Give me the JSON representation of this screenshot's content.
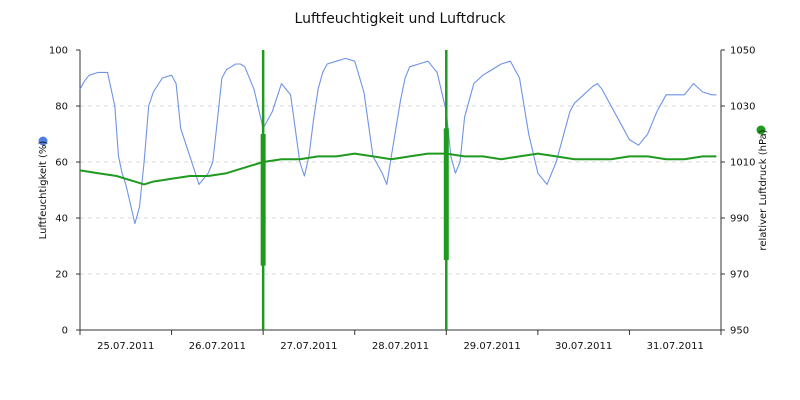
{
  "chart_data": {
    "type": "line",
    "title": "Luftfeuchtigkeit und Luftdruck",
    "x_labels": [
      "25.07.2011",
      "26.07.2011",
      "27.07.2011",
      "28.07.2011",
      "29.07.2011",
      "30.07.2011",
      "31.07.2011"
    ],
    "x_ticks_count": 8,
    "x_range": [
      0,
      7
    ],
    "grid": true,
    "y_left": {
      "label": "Luftfeuchtigkeit (%)",
      "ticks": [
        "0",
        "20",
        "40",
        "60",
        "80",
        "100"
      ],
      "ylim": [
        0,
        100
      ],
      "marker_color": "#4f7fe0"
    },
    "y_right": {
      "label": "relativer Luftdruck (hPa)",
      "ticks": [
        "950",
        "970",
        "990",
        "1010",
        "1030",
        "1050"
      ],
      "ylim": [
        950,
        1050
      ],
      "marker_color": "#1f9a1f"
    },
    "series": [
      {
        "axis": "left",
        "color": "#6f93e6",
        "x": [
          0.0,
          0.05,
          0.1,
          0.2,
          0.3,
          0.38,
          0.42,
          0.46,
          0.5,
          0.55,
          0.6,
          0.65,
          0.7,
          0.75,
          0.8,
          0.9,
          1.0,
          1.05,
          1.1,
          1.2,
          1.3,
          1.4,
          1.45,
          1.5,
          1.55,
          1.6,
          1.65,
          1.7,
          1.75,
          1.8,
          1.9,
          2.0,
          2.1,
          2.2,
          2.3,
          2.35,
          2.4,
          2.45,
          2.5,
          2.55,
          2.6,
          2.65,
          2.7,
          2.8,
          2.9,
          3.0,
          3.1,
          3.2,
          3.3,
          3.35,
          3.4,
          3.45,
          3.5,
          3.55,
          3.6,
          3.7,
          3.8,
          3.9,
          4.0,
          4.05,
          4.1,
          4.15,
          4.2,
          4.3,
          4.4,
          4.45,
          4.5,
          4.6,
          4.7,
          4.8,
          4.9,
          5.0,
          5.1,
          5.2,
          5.3,
          5.35,
          5.4,
          5.5,
          5.6,
          5.65,
          5.7,
          5.8,
          5.9,
          6.0,
          6.1,
          6.2,
          6.3,
          6.4,
          6.5,
          6.6,
          6.65,
          6.7,
          6.8,
          6.9,
          6.95
        ],
        "y": [
          86,
          89,
          91,
          92,
          92,
          80,
          62,
          56,
          52,
          45,
          38,
          44,
          60,
          80,
          85,
          90,
          91,
          88,
          72,
          62,
          52,
          56,
          60,
          75,
          90,
          93,
          94,
          95,
          95,
          94,
          86,
          72,
          78,
          88,
          84,
          72,
          60,
          55,
          62,
          75,
          86,
          92,
          95,
          96,
          97,
          96,
          85,
          62,
          56,
          52,
          62,
          72,
          82,
          90,
          94,
          95,
          96,
          92,
          78,
          62,
          56,
          60,
          76,
          88,
          91,
          92,
          93,
          95,
          96,
          90,
          70,
          56,
          52,
          60,
          72,
          78,
          81,
          84,
          87,
          88,
          86,
          80,
          74,
          68,
          66,
          70,
          78,
          84,
          84,
          84,
          86,
          88,
          85,
          84,
          84
        ]
      },
      {
        "axis": "right",
        "color": "#1f9a1f",
        "x": [
          0.0,
          0.2,
          0.4,
          0.6,
          0.7,
          0.8,
          1.0,
          1.2,
          1.4,
          1.6,
          1.8,
          2.0,
          2.2,
          2.4,
          2.6,
          2.8,
          3.0,
          3.2,
          3.4,
          3.6,
          3.8,
          4.0,
          4.2,
          4.4,
          4.6,
          4.8,
          5.0,
          5.2,
          5.4,
          5.6,
          5.8,
          6.0,
          6.2,
          6.4,
          6.6,
          6.8,
          6.95
        ],
        "y": [
          1007,
          1006,
          1005,
          1003,
          1002,
          1003,
          1004,
          1005,
          1005,
          1006,
          1008,
          1010,
          1011,
          1011,
          1012,
          1012,
          1013,
          1012,
          1011,
          1012,
          1013,
          1013,
          1012,
          1012,
          1011,
          1012,
          1013,
          1012,
          1011,
          1011,
          1011,
          1012,
          1012,
          1011,
          1011,
          1012,
          1012
        ]
      }
    ],
    "spikes": [
      {
        "x": 2.0,
        "bottom": 950,
        "top": 1050,
        "thick_bottom": 973,
        "thick_top": 1020
      },
      {
        "x": 4.0,
        "bottom": 950,
        "top": 1050,
        "thick_bottom": 975,
        "thick_top": 1022
      }
    ]
  }
}
